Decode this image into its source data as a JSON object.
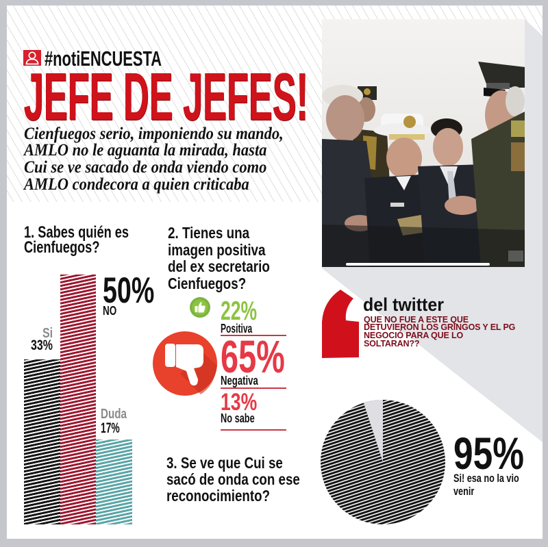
{
  "header": {
    "logo_icon": "user-icon",
    "hashtag": "#notiENCUESTA",
    "headline": "JEFE DE JEFES!",
    "subtitle_lines": [
      "Cienfuegos serio, imponiendo su mando,",
      "AMLO no le aguanta la mirada, hasta",
      "Cui se ve sacado de onda viendo como",
      "AMLO condecora a quien criticaba"
    ]
  },
  "colors": {
    "accent_red": "#d0121b",
    "positive_green": "#8cc43f",
    "negative_red": "#e63946",
    "thumbs_down_red": "#e8412c",
    "twitter_text": "#7b0d1b",
    "bar_si": "#141414",
    "bar_no": "#9c1830",
    "bar_duda": "#5aa5a6",
    "frame_gray": "#c6c7cd",
    "band_gray": "#e3e4e8"
  },
  "question1": {
    "title_lines": [
      "1. Sabes quién es",
      "Cienfuegos?"
    ],
    "answers": [
      {
        "label": "Si",
        "value": "33%"
      },
      {
        "label": "NO",
        "value": "50%"
      },
      {
        "label": "Duda",
        "value": "17%"
      }
    ]
  },
  "question2": {
    "title_lines": [
      "2. Tienes una",
      "imagen positiva",
      "del ex secretario",
      "Cienfuegos?"
    ],
    "answers": [
      {
        "label": "Positiva",
        "value": "22%",
        "icon": "thumbs-up-icon"
      },
      {
        "label": "Negativa",
        "value": "65%",
        "icon": "thumbs-down-icon"
      },
      {
        "label": "No sabe",
        "value": "13%"
      }
    ]
  },
  "twitter": {
    "icon": "quote-mark-icon",
    "title": "del twitter",
    "quote_lines": [
      "QUE NO FUE A ESTE QUE",
      "DETUVIERON LOS GRINGOS Y EL PG",
      "NEGOCIÓ PARA QUE LO",
      "SOLTARAN??"
    ]
  },
  "question3": {
    "title_lines": [
      "3. Se ve que Cui se",
      "sacó de onda con ese",
      "reconocimiento?"
    ],
    "answer": {
      "value": "95%",
      "label_lines": [
        "Si! esa no la vio",
        "venir"
      ]
    }
  },
  "chart_data": [
    {
      "type": "bar",
      "title": "1. Sabes quién es Cienfuegos?",
      "categories": [
        "Si",
        "NO",
        "Duda"
      ],
      "values": [
        33,
        50,
        17
      ],
      "value_labels": [
        "33%",
        "50%",
        "17%"
      ],
      "colors": [
        "#141414",
        "#9c1830",
        "#5aa5a6"
      ],
      "xlabel": "",
      "ylabel": "",
      "ylim": [
        0,
        50
      ],
      "grid": false,
      "legend": "none"
    },
    {
      "type": "table",
      "title": "2. Tienes una imagen positiva del ex secretario Cienfuegos?",
      "categories": [
        "Positiva",
        "Negativa",
        "No sabe"
      ],
      "values": [
        22,
        65,
        13
      ],
      "value_labels": [
        "22%",
        "65%",
        "13%"
      ],
      "colors": [
        "#8cc43f",
        "#e63946",
        "#e63946"
      ]
    },
    {
      "type": "pie",
      "title": "3. Se ve que Cui se sacó de onda con ese reconocimiento?",
      "categories": [
        "Si! esa no la vio venir"
      ],
      "values": [
        95
      ],
      "value_labels": [
        "95%"
      ],
      "colors": [
        "#141414",
        "#dfdfe3"
      ]
    }
  ]
}
